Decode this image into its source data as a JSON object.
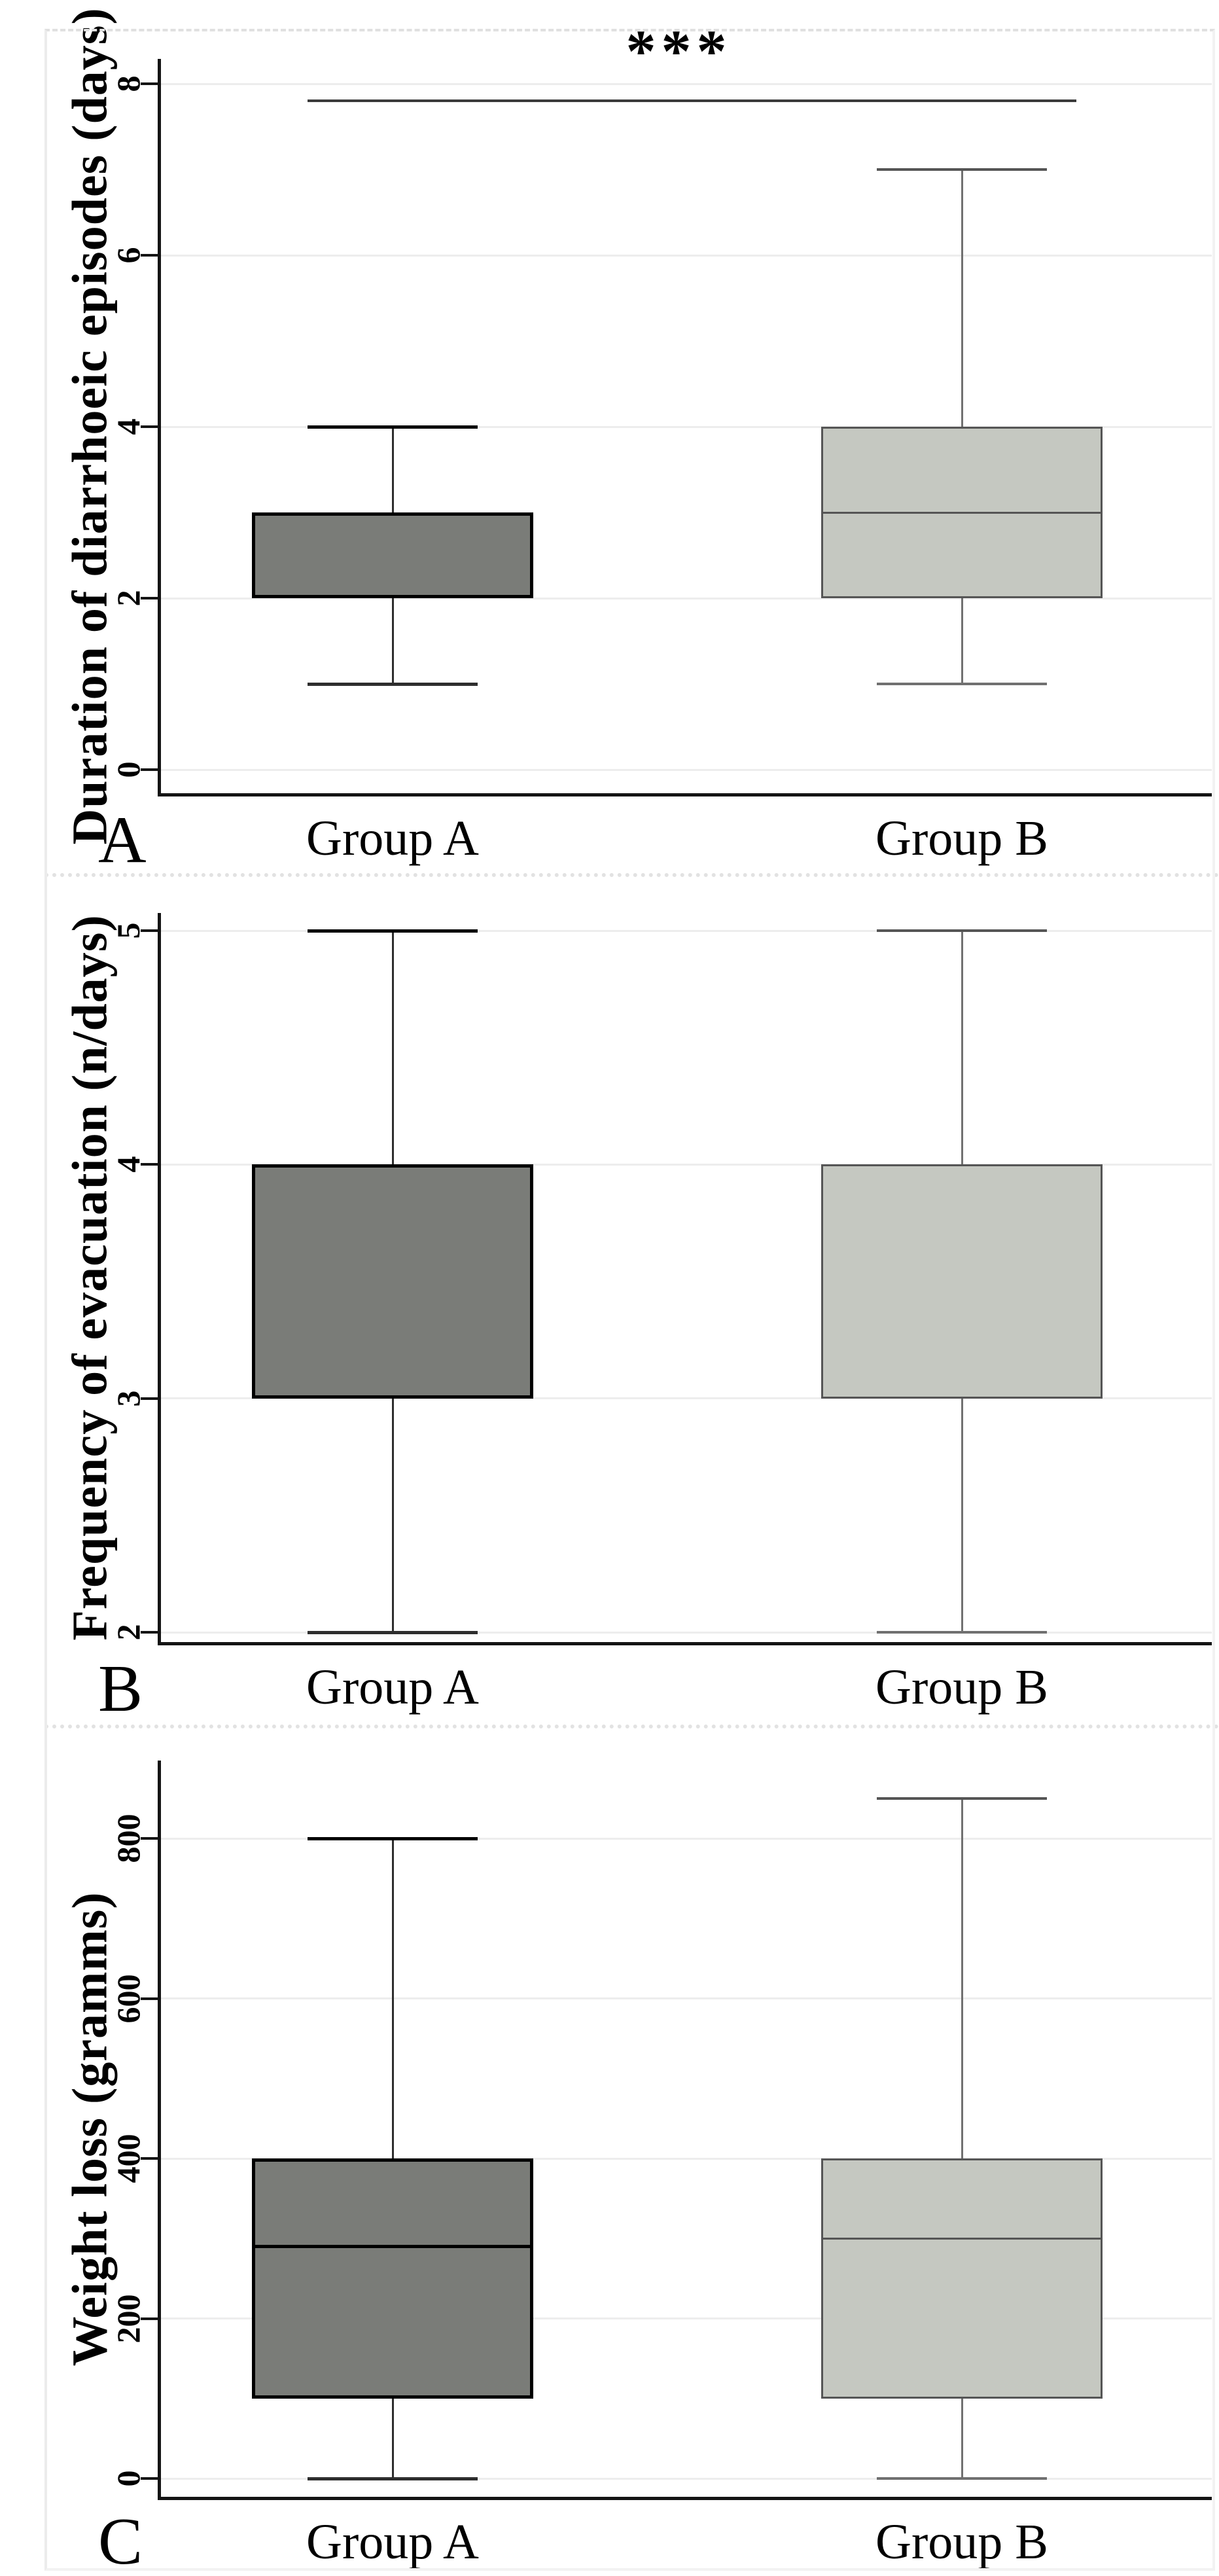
{
  "figure": {
    "description_colors": {
      "group_a_fill": "#7a7c78",
      "group_a_stroke": "#000000",
      "group_b_fill": "#c5c8c1",
      "group_b_stroke": "#555555",
      "gridline": "#ededed",
      "axis": "#141414",
      "significance_line": "#3b3b3b"
    }
  },
  "chart_data": [
    {
      "panel_label": "A",
      "type": "box",
      "ylabel": "Duration of diarrhoeic episodes (days)",
      "xlabel": "",
      "categories": [
        "Group A",
        "Group B"
      ],
      "yticks": [
        0,
        2,
        4,
        6,
        8
      ],
      "ylim": [
        -0.3,
        8.3
      ],
      "grid": true,
      "legend": "none",
      "series": [
        {
          "name": "Group A",
          "q1": 2,
          "median": null,
          "q3": 3,
          "whisker_low": 1,
          "whisker_high": 4,
          "fill": "#7a7c78",
          "stroke": "#000000",
          "whisker_color": "#2e2e2e"
        },
        {
          "name": "Group B",
          "q1": 2,
          "median": 3,
          "q3": 4,
          "whisker_low": 1,
          "whisker_high": 7,
          "fill": "#c5c8c1",
          "stroke": "#555555",
          "whisker_color": "#707070"
        }
      ],
      "annotation": {
        "text": "***",
        "y": 7.8,
        "from": "Group A",
        "to": "Group B"
      }
    },
    {
      "panel_label": "B",
      "type": "box",
      "ylabel": "Frequency of evacuation (n/days)",
      "xlabel": "",
      "categories": [
        "Group A",
        "Group B"
      ],
      "yticks": [
        2,
        3,
        4,
        5
      ],
      "ylim": [
        1.95,
        5.1
      ],
      "grid": true,
      "legend": "none",
      "series": [
        {
          "name": "Group A",
          "q1": 3,
          "median": null,
          "q3": 4,
          "whisker_low": 2,
          "whisker_high": 5,
          "fill": "#7a7c78",
          "stroke": "#000000",
          "whisker_color": "#2e2e2e"
        },
        {
          "name": "Group B",
          "q1": 3,
          "median": null,
          "q3": 4,
          "whisker_low": 2,
          "whisker_high": 5,
          "fill": "#c5c8c1",
          "stroke": "#555555",
          "whisker_color": "#707070"
        }
      ],
      "annotation": null
    },
    {
      "panel_label": "C",
      "type": "box",
      "ylabel": "Weight loss (gramms)",
      "xlabel": "",
      "categories": [
        "Group A",
        "Group B"
      ],
      "yticks": [
        0,
        200,
        400,
        600,
        800
      ],
      "ylim": [
        -25,
        895
      ],
      "grid": true,
      "legend": "none",
      "series": [
        {
          "name": "Group A",
          "q1": 100,
          "median": 290,
          "q3": 400,
          "whisker_low": 0,
          "whisker_high": 800,
          "fill": "#7a7c78",
          "stroke": "#000000",
          "whisker_color": "#2e2e2e"
        },
        {
          "name": "Group B",
          "q1": 100,
          "median": 300,
          "q3": 400,
          "whisker_low": 0,
          "whisker_high": 850,
          "fill": "#c5c8c1",
          "stroke": "#555555",
          "whisker_color": "#707070"
        }
      ],
      "annotation": null
    }
  ]
}
